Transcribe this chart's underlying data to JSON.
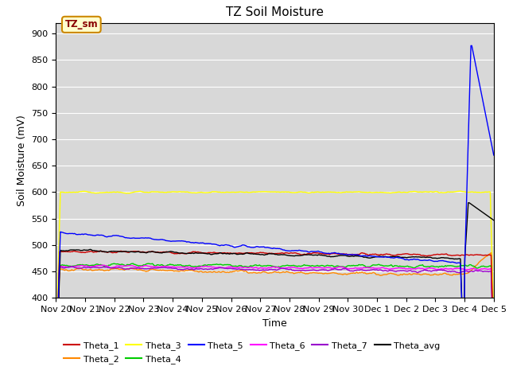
{
  "title": "TZ Soil Moisture",
  "xlabel": "Time",
  "ylabel": "Soil Moisture (mV)",
  "ylim": [
    400,
    920
  ],
  "yticks": [
    400,
    450,
    500,
    550,
    600,
    650,
    700,
    750,
    800,
    850,
    900
  ],
  "background_color": "#d8d8d8",
  "legend_label": "TZ_sm",
  "legend_box_bg": "#ffffcc",
  "legend_box_edge": "#cc8800",
  "legend_text_color": "#880000",
  "series": {
    "Theta_1": {
      "color": "#cc0000"
    },
    "Theta_2": {
      "color": "#ff8800"
    },
    "Theta_3": {
      "color": "#ffff00"
    },
    "Theta_4": {
      "color": "#00cc00"
    },
    "Theta_5": {
      "color": "#0000ff"
    },
    "Theta_6": {
      "color": "#ff00ff"
    },
    "Theta_7": {
      "color": "#9900cc"
    },
    "Theta_avg": {
      "color": "#000000"
    }
  },
  "x_tick_labels": [
    "Nov 20",
    "Nov 21",
    "Nov 22",
    "Nov 23",
    "Nov 24",
    "Nov 25",
    "Nov 26",
    "Nov 27",
    "Nov 28",
    "Nov 29",
    "Nov 30",
    "Dec 1",
    "Dec 2",
    "Dec 3",
    "Dec 4",
    "Dec 5"
  ],
  "n_points": 500
}
